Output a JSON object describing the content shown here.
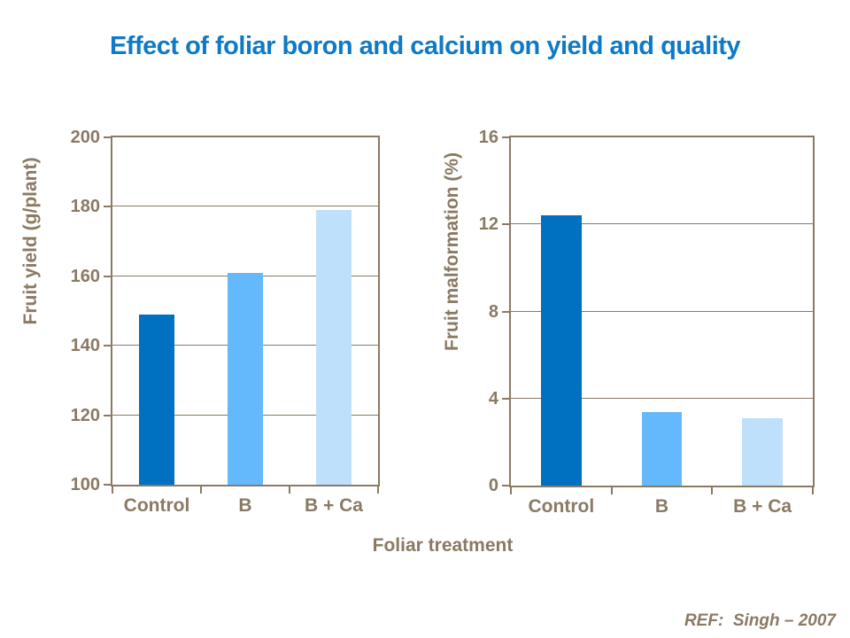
{
  "slide": {
    "title": "Effect of foliar boron and calcium on yield and quality",
    "x_axis_title": "Foliar treatment",
    "reference": "REF:  Singh – 2007"
  },
  "colors": {
    "title_blue": "#0E7AC6",
    "axis_brown": "#8A7A64",
    "bar_dark_blue": "#0070C0",
    "bar_medium_blue": "#63B9FC",
    "bar_light_blue": "#BEE0FB"
  },
  "chart_data": [
    {
      "type": "bar",
      "title": "",
      "categories": [
        "Control",
        "B",
        "B + Ca"
      ],
      "values": [
        149,
        161,
        179
      ],
      "xlabel": "Foliar treatment",
      "ylabel": "Fruit yield (g/plant)",
      "ylim": [
        100,
        200
      ],
      "yticks": [
        100,
        120,
        140,
        160,
        180,
        200
      ],
      "grid": true,
      "legend": false,
      "bar_colors": [
        "#0070C0",
        "#63B9FC",
        "#BEE0FB"
      ]
    },
    {
      "type": "bar",
      "title": "",
      "categories": [
        "Control",
        "B",
        "B + Ca"
      ],
      "values": [
        12.4,
        3.4,
        3.1
      ],
      "xlabel": "Foliar treatment",
      "ylabel": "Fruit malformation (%)",
      "ylim": [
        0,
        16
      ],
      "yticks": [
        0,
        4,
        8,
        12,
        16
      ],
      "grid": true,
      "legend": false,
      "bar_colors": [
        "#0070C0",
        "#63B9FC",
        "#BEE0FB"
      ]
    }
  ]
}
